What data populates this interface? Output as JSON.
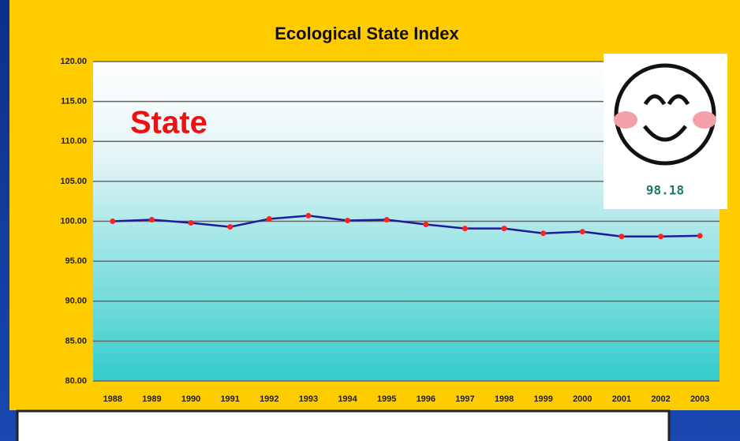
{
  "chart_data": {
    "type": "line",
    "title": "Ecological State Index",
    "annotation": "State",
    "badge_value": 98.18,
    "categories": [
      "1988",
      "1989",
      "1990",
      "1991",
      "1992",
      "1993",
      "1994",
      "1995",
      "1996",
      "1997",
      "1998",
      "1999",
      "2000",
      "2001",
      "2002",
      "2003"
    ],
    "series": [
      {
        "name": "Ecological State Index",
        "color": "#1c1c9c",
        "marker_color": "#ff2020",
        "values": [
          100.0,
          100.2,
          99.8,
          99.3,
          100.3,
          100.7,
          100.1,
          100.2,
          99.6,
          99.1,
          99.1,
          98.5,
          98.7,
          98.1,
          98.1,
          98.18
        ]
      }
    ],
    "ylim": [
      80,
      120
    ],
    "yticks": [
      {
        "value": 80,
        "label": "80.00"
      },
      {
        "value": 85,
        "label": "85.00"
      },
      {
        "value": 90,
        "label": "90.00"
      },
      {
        "value": 95,
        "label": "95.00"
      },
      {
        "value": 100,
        "label": "100.00"
      },
      {
        "value": 105,
        "label": "105.00"
      },
      {
        "value": 110,
        "label": "110.00"
      },
      {
        "value": 115,
        "label": "115.00"
      },
      {
        "value": 120,
        "label": "120.00"
      }
    ],
    "grid": true
  }
}
